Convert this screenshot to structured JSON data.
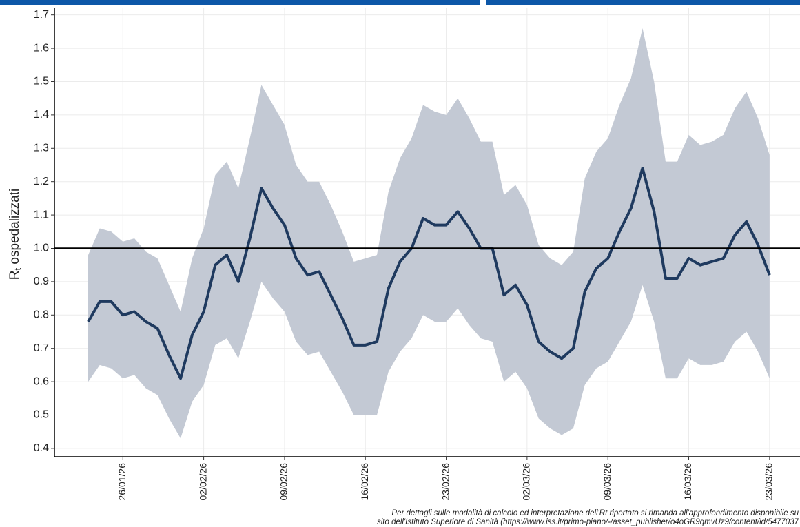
{
  "chart_data": {
    "type": "line",
    "ylabel_parts": [
      "R",
      "t",
      " ospedalizzati"
    ],
    "footnote": [
      "Per dettagli sulle modalità di calcolo ed interpretazione dell'Rt riportato si rimanda all'approfondimento disponibile su",
      "sito dell'Istituto Superiore di Sanità (https://www.iss.it/primo-piano/-/asset_publisher/o4oGR9qmvUz9/content/id/5477037"
    ],
    "x": [
      "23/01/26",
      "24/01/26",
      "25/01/26",
      "26/01/26",
      "27/01/26",
      "28/01/26",
      "29/01/26",
      "30/01/26",
      "31/01/26",
      "01/02/26",
      "02/02/26",
      "03/02/26",
      "04/02/26",
      "05/02/26",
      "06/02/26",
      "07/02/26",
      "08/02/26",
      "09/02/26",
      "10/02/26",
      "11/02/26",
      "12/02/26",
      "13/02/26",
      "14/02/26",
      "15/02/26",
      "16/02/26",
      "17/02/26",
      "18/02/26",
      "19/02/26",
      "20/02/26",
      "21/02/26",
      "22/02/26",
      "23/02/26",
      "24/02/26",
      "25/02/26",
      "26/02/26",
      "27/02/26",
      "28/02/26",
      "01/03/26",
      "02/03/26",
      "03/03/26",
      "04/03/26",
      "05/03/26",
      "06/03/26",
      "07/03/26",
      "08/03/26",
      "09/03/26",
      "10/03/26",
      "11/03/26",
      "12/03/26",
      "13/03/26",
      "14/03/26",
      "15/03/26",
      "16/03/26",
      "17/03/26",
      "18/03/26",
      "19/03/26",
      "20/03/26",
      "21/03/26",
      "22/03/26",
      "23/03/26"
    ],
    "series": [
      {
        "color": "#1f3a5f",
        "values": [
          0.78,
          0.84,
          0.84,
          0.8,
          0.81,
          0.78,
          0.76,
          0.68,
          0.61,
          0.74,
          0.81,
          0.95,
          0.98,
          0.9,
          1.03,
          1.18,
          1.12,
          1.07,
          0.97,
          0.92,
          0.93,
          0.86,
          0.79,
          0.71,
          0.71,
          0.72,
          0.88,
          0.96,
          1.0,
          1.09,
          1.07,
          1.07,
          1.11,
          1.06,
          1.0,
          1.0,
          0.86,
          0.89,
          0.83,
          0.72,
          0.69,
          0.67,
          0.7,
          0.87,
          0.94,
          0.97,
          1.05,
          1.12,
          1.24,
          1.11,
          0.91,
          0.91,
          0.97,
          0.95,
          0.96,
          0.97,
          1.04,
          1.08,
          1.01,
          0.92
        ],
        "upper": [
          0.98,
          1.06,
          1.05,
          1.02,
          1.03,
          0.99,
          0.97,
          0.89,
          0.81,
          0.97,
          1.06,
          1.22,
          1.26,
          1.18,
          1.33,
          1.49,
          1.43,
          1.37,
          1.25,
          1.2,
          1.2,
          1.13,
          1.05,
          0.96,
          0.97,
          0.98,
          1.17,
          1.27,
          1.33,
          1.43,
          1.41,
          1.4,
          1.45,
          1.39,
          1.32,
          1.32,
          1.16,
          1.19,
          1.13,
          1.01,
          0.97,
          0.95,
          0.99,
          1.21,
          1.29,
          1.33,
          1.43,
          1.51,
          1.66,
          1.5,
          1.26,
          1.26,
          1.34,
          1.31,
          1.32,
          1.34,
          1.42,
          1.47,
          1.39,
          1.28
        ],
        "lower": [
          0.6,
          0.65,
          0.64,
          0.61,
          0.62,
          0.58,
          0.56,
          0.49,
          0.43,
          0.54,
          0.59,
          0.71,
          0.73,
          0.67,
          0.78,
          0.9,
          0.85,
          0.81,
          0.72,
          0.68,
          0.69,
          0.63,
          0.57,
          0.5,
          0.5,
          0.5,
          0.63,
          0.69,
          0.73,
          0.8,
          0.78,
          0.78,
          0.82,
          0.77,
          0.73,
          0.72,
          0.6,
          0.63,
          0.58,
          0.49,
          0.46,
          0.44,
          0.46,
          0.59,
          0.64,
          0.66,
          0.72,
          0.78,
          0.89,
          0.78,
          0.61,
          0.61,
          0.67,
          0.65,
          0.65,
          0.66,
          0.72,
          0.75,
          0.69,
          0.61
        ],
        "band_color": "#c3c9d4"
      }
    ],
    "hline": 1.0,
    "ylim": [
      0.375,
      1.72
    ],
    "yticks": [
      0.4,
      0.5,
      0.6,
      0.7,
      0.8,
      0.9,
      {
        "value": 1.0,
        "label": "1.0"
      },
      1.1,
      1.2,
      1.3,
      1.4,
      1.5,
      1.6,
      1.7
    ],
    "xticks": [
      "26/01/26",
      "02/02/26",
      "09/02/26",
      "16/02/26",
      "23/02/26",
      "02/03/26",
      "09/03/26",
      "16/03/26",
      "23/03/26"
    ],
    "grid": true
  }
}
